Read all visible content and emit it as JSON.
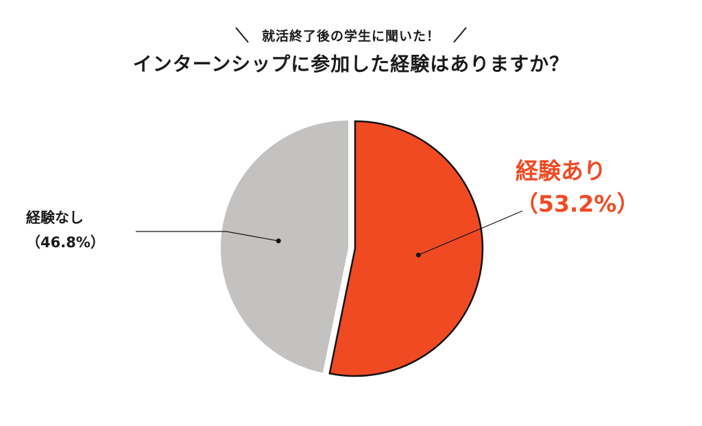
{
  "subtitle": "就活終了後の学生に聞いた！",
  "chart_data": {
    "type": "pie",
    "title": "インターンシップに参加した経験はありますか？",
    "subtitle": "就活終了後の学生に聞いた！",
    "slices": [
      {
        "name": "経験あり",
        "value": 53.2,
        "display": "（53.2%）",
        "color": "#f04a23",
        "exploded": true
      },
      {
        "name": "経験なし",
        "value": 46.8,
        "display": "（46.8%）",
        "color": "#c3c2c1",
        "exploded": false
      }
    ],
    "legend": "none",
    "start_angle": "top, clockwise"
  }
}
